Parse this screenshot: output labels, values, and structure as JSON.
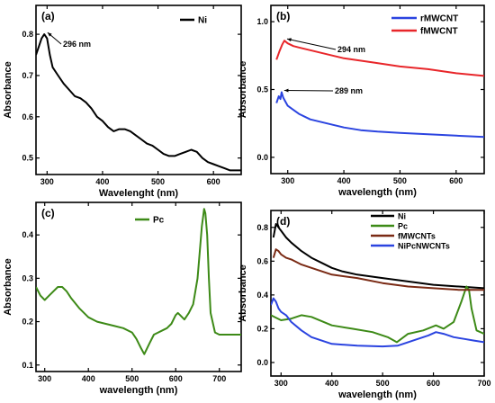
{
  "chart_data": [
    {
      "panel": "(a)",
      "type": "line",
      "title": "",
      "xlabel": "Wavelenght (nm)",
      "ylabel": "Absorbance",
      "xlim": [
        280,
        650
      ],
      "ylim": [
        0.46,
        0.87
      ],
      "xticks": [
        300,
        400,
        500,
        600
      ],
      "yticks": [
        0.5,
        0.6,
        0.7,
        0.8
      ],
      "legend_position": "top-right",
      "series": [
        {
          "name": "Ni",
          "color": "#000000",
          "x": [
            280,
            285,
            290,
            295,
            300,
            305,
            310,
            320,
            330,
            340,
            350,
            360,
            370,
            380,
            390,
            400,
            410,
            420,
            430,
            440,
            450,
            460,
            470,
            480,
            490,
            500,
            510,
            520,
            530,
            540,
            550,
            560,
            570,
            580,
            590,
            600,
            610,
            620,
            630,
            640,
            650
          ],
          "y": [
            0.75,
            0.77,
            0.79,
            0.8,
            0.79,
            0.75,
            0.72,
            0.7,
            0.68,
            0.665,
            0.65,
            0.645,
            0.635,
            0.62,
            0.6,
            0.59,
            0.575,
            0.565,
            0.57,
            0.57,
            0.565,
            0.555,
            0.545,
            0.535,
            0.53,
            0.52,
            0.51,
            0.505,
            0.505,
            0.51,
            0.515,
            0.52,
            0.515,
            0.5,
            0.49,
            0.485,
            0.48,
            0.475,
            0.47,
            0.47,
            0.47
          ]
        }
      ],
      "annotations": [
        {
          "text": "296 nm",
          "x": 296,
          "y": 0.8
        }
      ]
    },
    {
      "panel": "(b)",
      "type": "line",
      "title": "",
      "xlabel": "wavelength (nm)",
      "ylabel": "Absorbance",
      "xlim": [
        270,
        650
      ],
      "ylim": [
        -0.12,
        1.12
      ],
      "xticks": [
        300,
        400,
        500,
        600
      ],
      "yticks": [
        0.0,
        0.5,
        1.0
      ],
      "legend_position": "top-right",
      "series": [
        {
          "name": "rMWCNT",
          "color": "#2b44e0",
          "x": [
            280,
            284,
            287,
            289,
            292,
            296,
            300,
            310,
            320,
            340,
            360,
            380,
            400,
            430,
            460,
            500,
            550,
            600,
            650
          ],
          "y": [
            0.4,
            0.45,
            0.43,
            0.48,
            0.44,
            0.41,
            0.38,
            0.35,
            0.32,
            0.28,
            0.26,
            0.24,
            0.22,
            0.2,
            0.19,
            0.18,
            0.17,
            0.16,
            0.15
          ]
        },
        {
          "name": "fMWCNT",
          "color": "#e8262a",
          "x": [
            280,
            285,
            290,
            294,
            300,
            310,
            320,
            340,
            360,
            380,
            400,
            450,
            500,
            550,
            600,
            650
          ],
          "y": [
            0.72,
            0.78,
            0.83,
            0.86,
            0.84,
            0.82,
            0.81,
            0.79,
            0.77,
            0.75,
            0.73,
            0.7,
            0.67,
            0.65,
            0.62,
            0.6
          ]
        }
      ],
      "annotations": [
        {
          "text": "294 nm",
          "x": 294,
          "y": 0.86
        },
        {
          "text": "289 nm",
          "x": 289,
          "y": 0.48
        }
      ]
    },
    {
      "panel": "(c)",
      "type": "line",
      "title": "",
      "xlabel": "wavelength (nm)",
      "ylabel": "Absorbance",
      "xlim": [
        280,
        750
      ],
      "ylim": [
        0.085,
        0.475
      ],
      "xticks": [
        300,
        400,
        500,
        600,
        700
      ],
      "yticks": [
        0.1,
        0.2,
        0.3,
        0.4
      ],
      "legend_position": "top-center",
      "series": [
        {
          "name": "Pc",
          "color": "#3d8a17",
          "x": [
            280,
            290,
            300,
            310,
            320,
            330,
            340,
            350,
            360,
            380,
            400,
            420,
            440,
            460,
            480,
            500,
            510,
            520,
            528,
            540,
            550,
            560,
            570,
            580,
            590,
            600,
            605,
            610,
            620,
            630,
            640,
            650,
            655,
            660,
            665,
            668,
            672,
            676,
            680,
            690,
            700,
            720,
            750
          ],
          "y": [
            0.28,
            0.26,
            0.25,
            0.26,
            0.27,
            0.28,
            0.28,
            0.27,
            0.255,
            0.23,
            0.21,
            0.2,
            0.195,
            0.19,
            0.185,
            0.175,
            0.16,
            0.14,
            0.125,
            0.15,
            0.17,
            0.175,
            0.18,
            0.185,
            0.195,
            0.215,
            0.22,
            0.215,
            0.205,
            0.22,
            0.24,
            0.3,
            0.36,
            0.42,
            0.46,
            0.45,
            0.4,
            0.3,
            0.22,
            0.175,
            0.17,
            0.17,
            0.17
          ]
        }
      ]
    },
    {
      "panel": "(d)",
      "type": "line",
      "title": "",
      "xlabel": "wavelength (nm)",
      "ylabel": "Absorbance",
      "xlim": [
        280,
        700
      ],
      "ylim": [
        -0.08,
        0.9
      ],
      "xticks": [
        300,
        400,
        500,
        600,
        700
      ],
      "yticks": [
        0.0,
        0.2,
        0.4,
        0.6,
        0.8
      ],
      "legend_position": "top-right",
      "series": [
        {
          "name": "Ni",
          "color": "#000000",
          "x": [
            285,
            290,
            295,
            300,
            310,
            320,
            340,
            360,
            380,
            400,
            420,
            450,
            500,
            550,
            600,
            650,
            700
          ],
          "y": [
            0.74,
            0.82,
            0.8,
            0.78,
            0.74,
            0.71,
            0.66,
            0.62,
            0.59,
            0.56,
            0.54,
            0.52,
            0.5,
            0.48,
            0.46,
            0.45,
            0.44
          ]
        },
        {
          "name": "Pc",
          "color": "#3d8a17",
          "x": [
            280,
            300,
            320,
            340,
            360,
            400,
            440,
            480,
            510,
            528,
            550,
            580,
            605,
            620,
            640,
            655,
            665,
            670,
            675,
            685,
            700
          ],
          "y": [
            0.28,
            0.25,
            0.26,
            0.28,
            0.27,
            0.22,
            0.2,
            0.18,
            0.15,
            0.12,
            0.17,
            0.19,
            0.22,
            0.2,
            0.24,
            0.36,
            0.45,
            0.43,
            0.32,
            0.19,
            0.17
          ]
        },
        {
          "name": "fMWCNTs",
          "color": "#7a2a14",
          "x": [
            285,
            290,
            295,
            300,
            310,
            320,
            340,
            360,
            380,
            400,
            450,
            500,
            550,
            600,
            650,
            700
          ],
          "y": [
            0.62,
            0.67,
            0.66,
            0.64,
            0.62,
            0.61,
            0.58,
            0.56,
            0.54,
            0.52,
            0.5,
            0.47,
            0.45,
            0.44,
            0.43,
            0.43
          ]
        },
        {
          "name": "NiPcNWCNTs",
          "color": "#2b44e0",
          "x": [
            280,
            285,
            290,
            295,
            300,
            310,
            320,
            340,
            360,
            380,
            400,
            450,
            500,
            530,
            560,
            590,
            605,
            620,
            640,
            660,
            680,
            700
          ],
          "y": [
            0.34,
            0.38,
            0.36,
            0.32,
            0.3,
            0.28,
            0.24,
            0.19,
            0.15,
            0.13,
            0.11,
            0.1,
            0.095,
            0.1,
            0.13,
            0.16,
            0.18,
            0.17,
            0.15,
            0.14,
            0.13,
            0.12
          ]
        }
      ]
    }
  ]
}
